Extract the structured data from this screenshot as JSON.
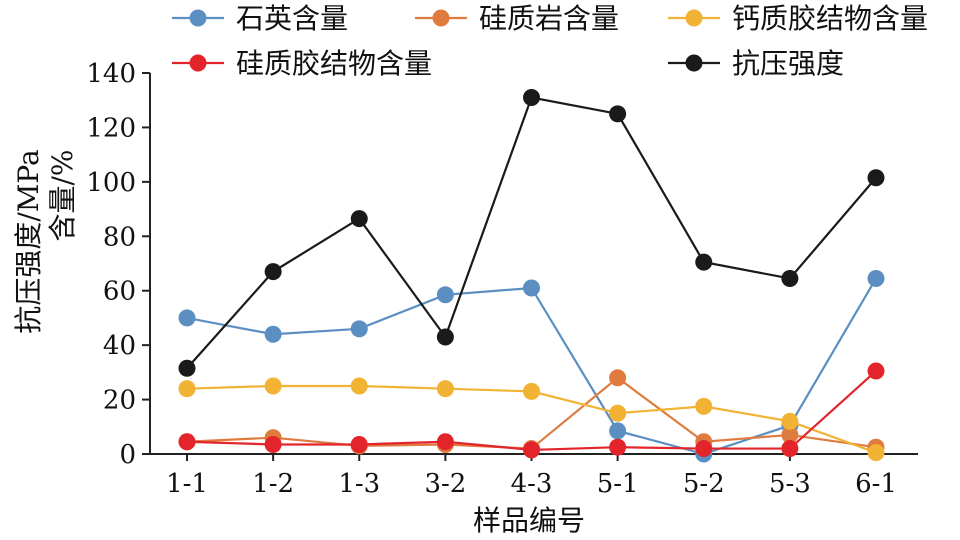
{
  "chart_data": {
    "type": "line",
    "title": "",
    "xlabel": "样品编号",
    "ylabel_lines": [
      "抗压强度/MPa",
      "含量/%"
    ],
    "categories": [
      "1-1",
      "1-2",
      "1-3",
      "3-2",
      "4-3",
      "5-1",
      "5-2",
      "5-3",
      "6-1"
    ],
    "ylim": [
      0,
      140
    ],
    "yticks": [
      0,
      20,
      40,
      60,
      80,
      100,
      120,
      140
    ],
    "grid": false,
    "legend_position": "top",
    "series": [
      {
        "name": "石英含量",
        "color": "#5b8fc2",
        "values": [
          50,
          44,
          46,
          58.5,
          61,
          8.5,
          0,
          10.5,
          64.5
        ]
      },
      {
        "name": "硅质岩含量",
        "color": "#e07b3f",
        "values": [
          4.5,
          6,
          3,
          3.5,
          2,
          28,
          4.5,
          7,
          2.5
        ]
      },
      {
        "name": "钙质胶结物含量",
        "color": "#f2b233",
        "values": [
          24,
          25,
          25,
          24,
          23,
          15,
          17.5,
          12,
          0.5
        ]
      },
      {
        "name": "硅质胶结物含量",
        "color": "#e3242b",
        "values": [
          4.5,
          3.5,
          3.5,
          4.5,
          1.5,
          2.5,
          2,
          2,
          30.5
        ]
      },
      {
        "name": "抗压强度",
        "color": "#1a1a1a",
        "values": [
          31.5,
          67,
          86.5,
          43,
          131,
          125,
          70.5,
          64.5,
          101.5
        ]
      }
    ]
  }
}
